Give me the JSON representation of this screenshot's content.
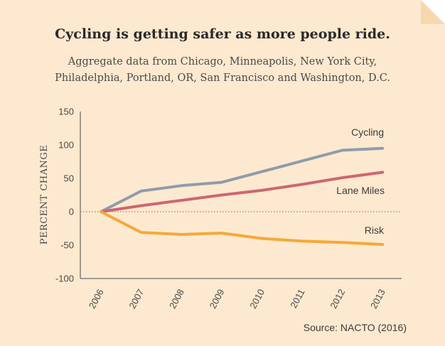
{
  "title": "Cycling is getting safer as more people ride.",
  "subtitle_lines": [
    "Aggregate data from Chicago, Minneapolis, New York City,",
    "Philadelphia, Portland, OR, San Francisco and Washington, D.C."
  ],
  "source": "Source: NACTO (2016)",
  "colors": {
    "background": "#fde9cf",
    "cycling": "#8e9cac",
    "lane_miles": "#cf6672",
    "risk": "#f4a937"
  },
  "chart_data": {
    "type": "line",
    "title": "Cycling is getting safer as more people ride.",
    "ylabel": "PERCENT CHANGE",
    "xlabel": "",
    "x": [
      "2006",
      "2007",
      "2008",
      "2009",
      "2010",
      "2011",
      "2012",
      "2013"
    ],
    "ylim": [
      -100,
      150
    ],
    "yticks": [
      "150",
      "100",
      "50",
      "0",
      "-50",
      "-100"
    ],
    "zero_line": "dotted",
    "series": [
      {
        "name": "Cycling",
        "color": "#8e9cac",
        "values": [
          0,
          31,
          39,
          44,
          60,
          76,
          92,
          95
        ]
      },
      {
        "name": "Lane Miles",
        "color": "#cf6672",
        "values": [
          0,
          9,
          17,
          25,
          32,
          41,
          51,
          59
        ]
      },
      {
        "name": "Risk",
        "color": "#f4a937",
        "values": [
          0,
          -31,
          -34,
          -32,
          -40,
          -44,
          -46,
          -49
        ]
      }
    ]
  }
}
